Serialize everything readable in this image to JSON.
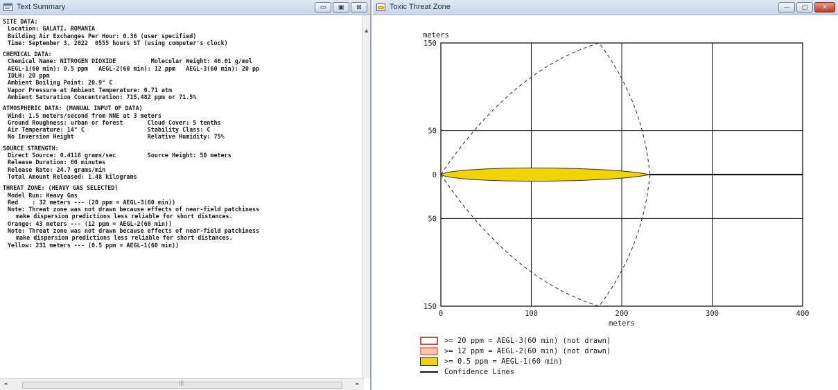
{
  "text_window": {
    "title": "Text Summary",
    "controls": {
      "minimize": "▭",
      "maximize": "▣",
      "close": "⊠"
    },
    "sections": [
      {
        "title": "SITE DATA:",
        "lines": [
          {
            "text": "Location: GALATI, ROMANIA",
            "indent": 1
          },
          {
            "text": "Building Air Exchanges Per Hour: 0.36 (user specified)",
            "indent": 1
          },
          {
            "text": "Time: September 3, 2022  0555 hours ST (using computer's clock)",
            "indent": 1
          }
        ]
      },
      {
        "title": "CHEMICAL DATA:",
        "lines": [
          {
            "text": "Chemical Name: NITROGEN DIOXIDE          Molecular Weight: 46.01 g/mol",
            "indent": 1
          },
          {
            "text": "AEGL-1(60 min): 0.5 ppm   AEGL-2(60 min): 12 ppm   AEGL-3(60 min): 20 pp",
            "indent": 1
          },
          {
            "text": "IDLH: 20 ppm",
            "indent": 1
          },
          {
            "text": "Ambient Boiling Point: 20.9° C",
            "indent": 1
          },
          {
            "text": "Vapor Pressure at Ambient Temperature: 0.71 atm",
            "indent": 1
          },
          {
            "text": "Ambient Saturation Concentration: 715,482 ppm or 71.5%",
            "indent": 1
          }
        ]
      },
      {
        "title": "ATMOSPHERIC DATA: (MANUAL INPUT OF DATA)",
        "lines": [
          {
            "text": "Wind: 1.5 meters/second from NNE at 3 meters",
            "indent": 1
          },
          {
            "text": "Ground Roughness: urban or forest       Cloud Cover: 5 tenths",
            "indent": 1
          },
          {
            "text": "Air Temperature: 14° C                  Stability Class: C",
            "indent": 1
          },
          {
            "text": "No Inversion Height                     Relative Humidity: 75%",
            "indent": 1
          }
        ]
      },
      {
        "title": "SOURCE STRENGTH:",
        "lines": [
          {
            "text": "Direct Source: 0.4116 grams/sec         Source Height: 50 meters",
            "indent": 1
          },
          {
            "text": "Release Duration: 60 minutes",
            "indent": 1
          },
          {
            "text": "Release Rate: 24.7 grams/min",
            "indent": 1
          },
          {
            "text": "Total Amount Released: 1.48 kilograms",
            "indent": 1
          }
        ]
      },
      {
        "title": "THREAT ZONE: (HEAVY GAS SELECTED)",
        "lines": [
          {
            "text": "Model Run: Heavy Gas",
            "indent": 1
          },
          {
            "text": "Red    : 32 meters --- (20 ppm = AEGL-3(60 min))",
            "indent": 1
          },
          {
            "text": "Note: Threat zone was not drawn because effects of near-field patchiness",
            "indent": 1
          },
          {
            "text": "make dispersion predictions less reliable for short distances.",
            "indent": 2
          },
          {
            "text": "Orange: 43 meters --- (12 ppm = AEGL-2(60 min))",
            "indent": 1
          },
          {
            "text": "Note: Threat zone was not drawn because effects of near-field patchiness",
            "indent": 1
          },
          {
            "text": "make dispersion predictions less reliable for short distances.",
            "indent": 2
          },
          {
            "text": "Yellow: 231 meters --- (0.5 ppm = AEGL-1(60 min))",
            "indent": 1
          }
        ]
      }
    ]
  },
  "threat_window": {
    "title": "Toxic Threat Zone",
    "controls": {
      "minimize": "—",
      "maximize": "□",
      "close": "✕"
    },
    "colors": {
      "yellow": "#f2d400",
      "orange_fill": "#f6c7a8",
      "red_fill": "#ffffff",
      "red_border": "#d94b3b",
      "orange_border": "#e38a6a",
      "confidence": "#222222"
    },
    "chart_data": {
      "type": "area",
      "xlabel": "meters",
      "ylabel": "meters",
      "xlim": [
        0,
        400
      ],
      "ylim": [
        -150,
        150
      ],
      "x_ticks": [
        0,
        100,
        200,
        300,
        400
      ],
      "y_ticks": [
        {
          "value": 150,
          "label": "150"
        },
        {
          "value": 50,
          "label": "50"
        },
        {
          "value": 0,
          "label": "0"
        },
        {
          "value": -50,
          "label": "50"
        },
        {
          "value": -150,
          "label": "150"
        }
      ],
      "grid": true,
      "yellow_zone": {
        "length_m": 231,
        "half_width_m": 10
      },
      "confidence_lines": {
        "tip_x_m": 231,
        "max_half_width_m": 150,
        "max_at_x_m": 175
      },
      "centerline_from_m": 231,
      "legend": [
        {
          "label": ">= 20 ppm = AEGL-3(60 min)  (not drawn)",
          "swatch": "red"
        },
        {
          "label": ">= 12 ppm = AEGL-2(60 min)  (not drawn)",
          "swatch": "orange"
        },
        {
          "label": ">= 0.5 ppm = AEGL-1(60 min)",
          "swatch": "yellow"
        },
        {
          "label": "Confidence Lines",
          "swatch": "line"
        }
      ]
    }
  }
}
